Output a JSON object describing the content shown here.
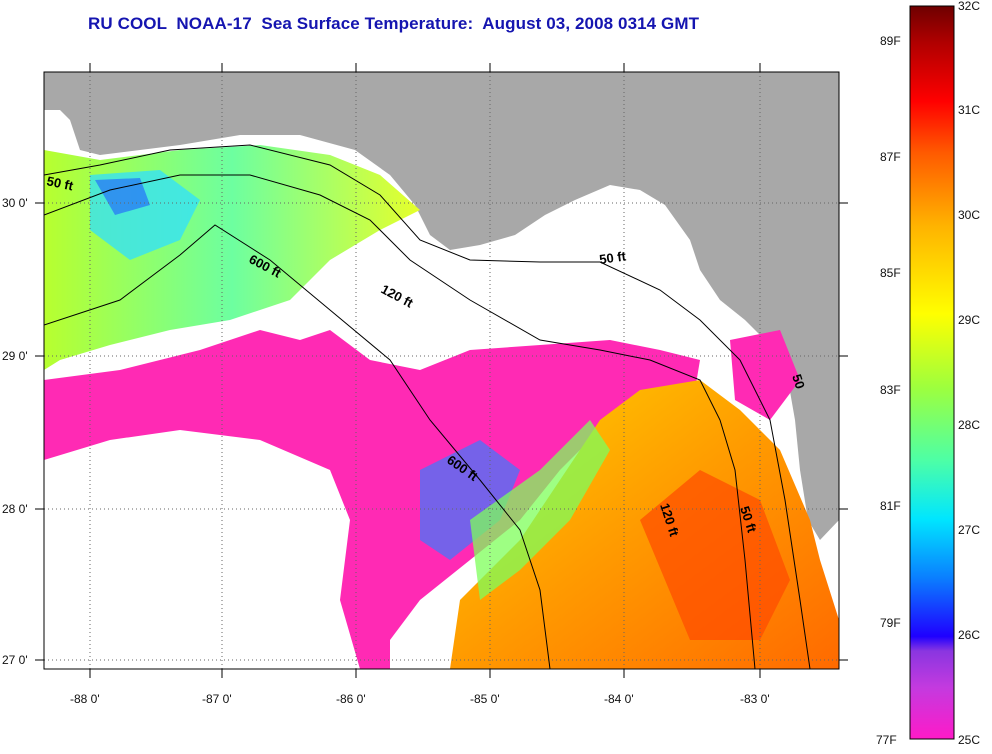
{
  "title": "RU COOL  NOAA-17  Sea Surface Temperature:  August 03, 2008 0314 GMT",
  "map": {
    "lat_labels": [
      "30 0'",
      "29 0'",
      "28 0'",
      "27 0'"
    ],
    "lon_labels": [
      "-88 0'",
      "-87 0'",
      "-86 0'",
      "-85 0'",
      "-84 0'",
      "-83 0'"
    ],
    "isobath_labels": [
      "50 ft",
      "600 ft",
      "120 ft",
      "50 ft",
      "600 ft",
      "120 ft",
      "50 ft",
      "50"
    ],
    "colors": {
      "land": "#a8a8a8",
      "cloud": "#ffffff",
      "frame": "#000000",
      "grid": "#555555"
    }
  },
  "colorbar": {
    "celsius": [
      "32C",
      "31C",
      "30C",
      "29C",
      "28C",
      "27C",
      "26C",
      "25C"
    ],
    "fahrenheit": [
      "89F",
      "87F",
      "85F",
      "83F",
      "81F",
      "79F",
      "77F"
    ],
    "range_c": [
      25,
      32
    ],
    "stops": [
      "#ff1ac8",
      "#8a36e0",
      "#1f00ff",
      "#0a7fff",
      "#00e6ff",
      "#4dffa6",
      "#9eff3d",
      "#ffff00",
      "#ffb300",
      "#ff5a00",
      "#ff0000",
      "#b00000",
      "#6e0000"
    ]
  }
}
